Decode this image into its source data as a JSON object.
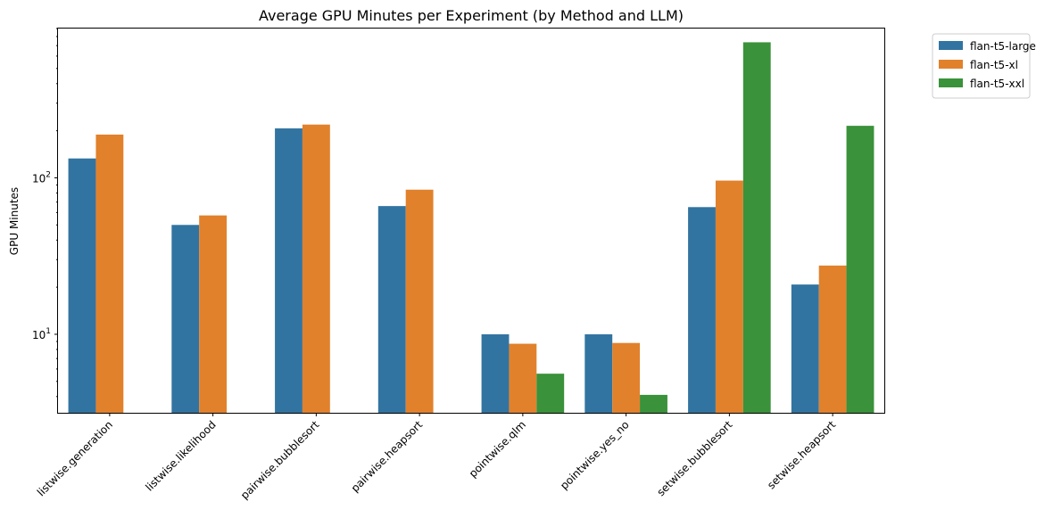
{
  "chart_data": {
    "type": "bar",
    "title": "Average GPU Minutes per Experiment (by Method and LLM)",
    "xlabel": "",
    "ylabel": "GPU Minutes",
    "yscale": "log",
    "ylim": [
      3.15,
      900
    ],
    "y_major_ticks": [
      {
        "value": 10,
        "base": "10",
        "exp": "1"
      },
      {
        "value": 100,
        "base": "10",
        "exp": "2"
      }
    ],
    "categories": [
      "listwise.generation",
      "listwise.likelihood",
      "pairwise.bubblesort",
      "pairwise.heapsort",
      "pointwise.qlm",
      "pointwise.yes_no",
      "setwise.bubblesort",
      "setwise.heapsort"
    ],
    "series": [
      {
        "name": "flan-t5-large",
        "color": "#3274a1",
        "values": [
          133,
          50,
          207,
          66,
          10.0,
          10.0,
          65,
          20.8
        ]
      },
      {
        "name": "flan-t5-xl",
        "color": "#e1812c",
        "values": [
          189,
          57.5,
          219,
          84,
          8.7,
          8.8,
          96,
          27.5
        ]
      },
      {
        "name": "flan-t5-xxl",
        "color": "#3a923a",
        "values": [
          null,
          null,
          null,
          null,
          5.6,
          4.1,
          735,
          215
        ]
      }
    ],
    "legend": {
      "position": "outside-top-right"
    },
    "grid": false
  }
}
